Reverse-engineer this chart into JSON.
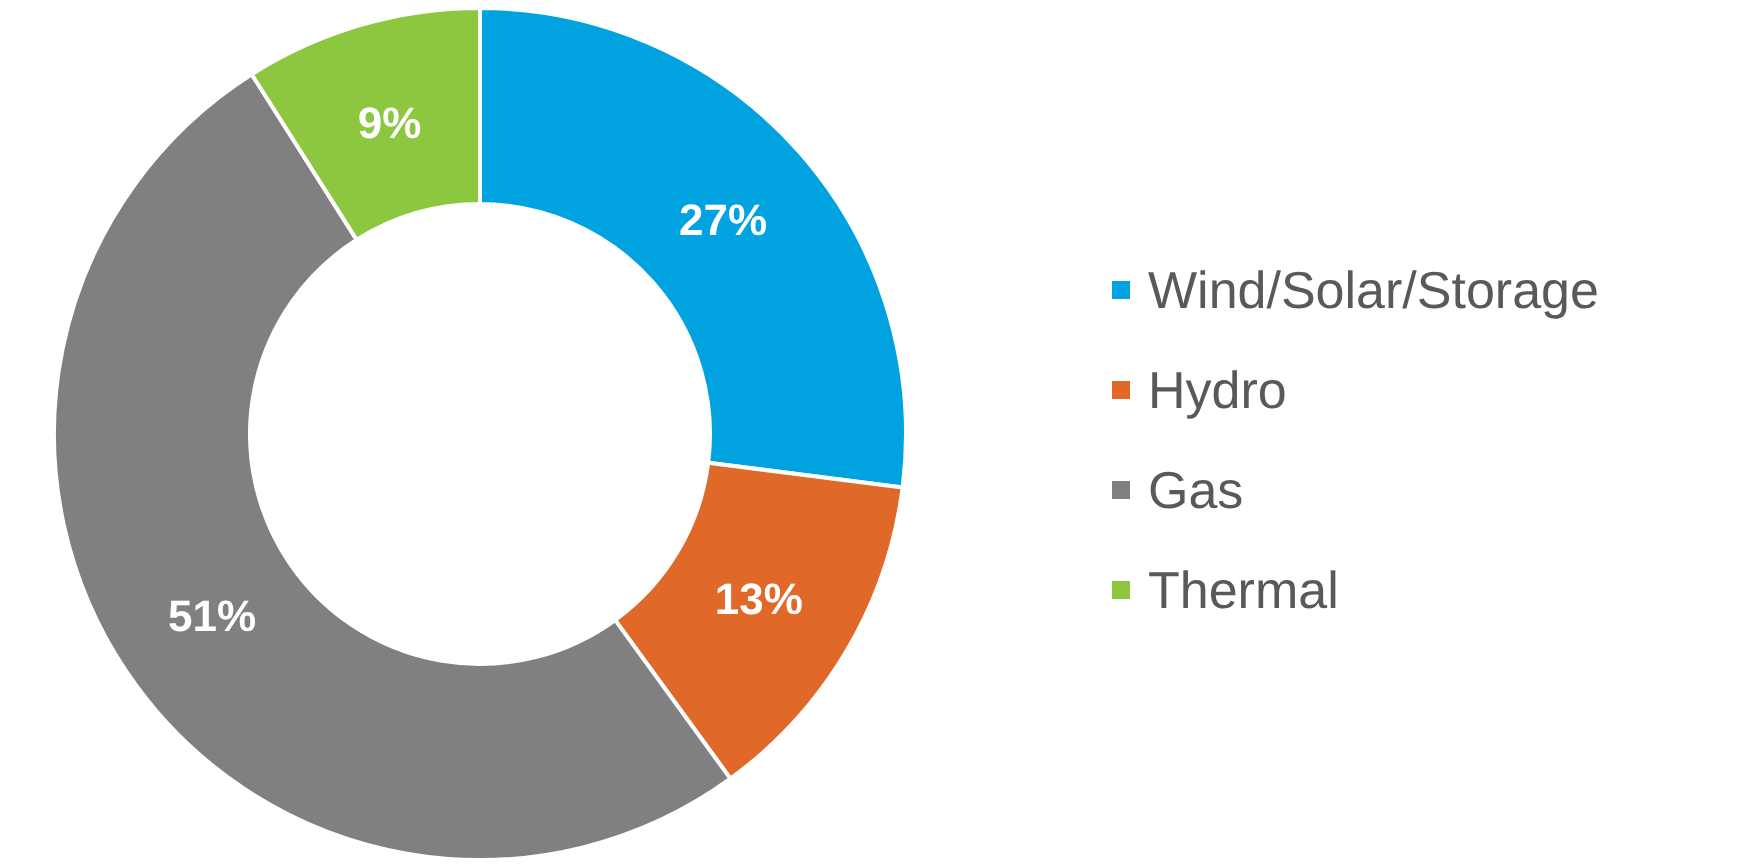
{
  "chart_data": {
    "type": "donut",
    "categories": [
      "Wind/Solar/Storage",
      "Hydro",
      "Gas",
      "Thermal"
    ],
    "values": [
      27,
      13,
      51,
      9
    ],
    "value_labels": [
      "27%",
      "13%",
      "51%",
      "9%"
    ],
    "colors": [
      "#00a3e0",
      "#e0692a",
      "#808080",
      "#8dc63f"
    ],
    "legend": "right"
  }
}
